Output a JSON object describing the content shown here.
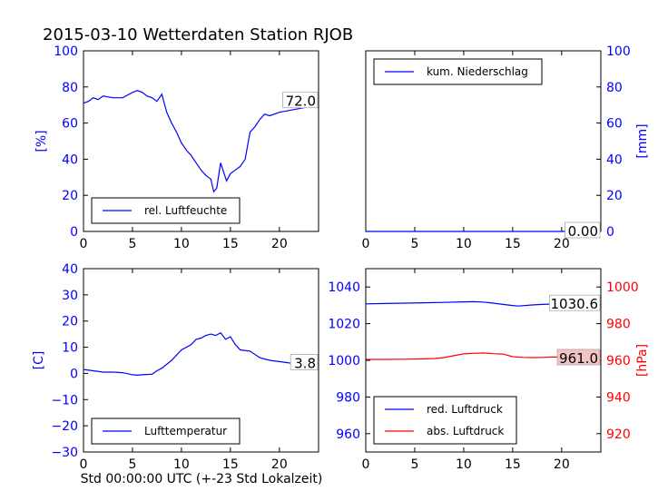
{
  "figure": {
    "title": "2015-03-10 Wetterdaten Station RJOB",
    "xlabel": "Std 00:00:00 UTC (+-23 Std Lokalzeit)"
  },
  "colors": {
    "blue": "#0000ff",
    "red": "#ff0000",
    "black": "#000000",
    "ann_bg_red": "#f4c2c2"
  },
  "chart_data": [
    {
      "type": "line",
      "title": "",
      "ylabel": "[%]",
      "xlim": [
        0,
        24
      ],
      "ylim": [
        0,
        100
      ],
      "xticks": [
        "0",
        "5",
        "10",
        "15",
        "20"
      ],
      "yticks": [
        "0",
        "20",
        "40",
        "60",
        "80",
        "100"
      ],
      "legend": {
        "position": "bottom-left",
        "entries": [
          "rel. Luftfeuchte"
        ]
      },
      "annotation": "72.0",
      "series": [
        {
          "name": "rel. Luftfeuchte",
          "color": "#0000ff",
          "x": [
            0,
            0.5,
            1,
            1.5,
            2,
            3,
            4,
            5,
            5.5,
            6,
            6.5,
            7,
            7.5,
            8,
            8.5,
            9,
            9.5,
            10,
            10.5,
            11,
            11.5,
            12,
            12.5,
            13,
            13.3,
            13.6,
            14,
            14.3,
            14.6,
            15,
            15.5,
            16,
            16.5,
            17,
            17.5,
            18,
            18.5,
            19,
            20,
            21,
            22,
            23,
            23.5,
            24
          ],
          "y": [
            71,
            72,
            74,
            73,
            75,
            74,
            74,
            77,
            78,
            77,
            75,
            74,
            72,
            76,
            66,
            60,
            55,
            49,
            45,
            42,
            38,
            34,
            31,
            29,
            22,
            24,
            38,
            33,
            28,
            32,
            34,
            36,
            40,
            55,
            58,
            62,
            65,
            64,
            66,
            67,
            68,
            69,
            70,
            72
          ]
        }
      ]
    },
    {
      "type": "line",
      "title": "",
      "ylabel": "[mm]",
      "xlim": [
        0,
        24
      ],
      "ylim": [
        0,
        100
      ],
      "xticks": [
        "0",
        "5",
        "10",
        "15",
        "20"
      ],
      "yticks": [
        "0",
        "20",
        "40",
        "60",
        "80",
        "100"
      ],
      "legend": {
        "position": "top-left",
        "entries": [
          "kum. Niederschlag"
        ]
      },
      "annotation": "0.00",
      "series": [
        {
          "name": "kum. Niederschlag",
          "color": "#0000ff",
          "x": [
            0,
            24
          ],
          "y": [
            0,
            0
          ]
        }
      ]
    },
    {
      "type": "line",
      "title": "",
      "ylabel": "[C]",
      "xlim": [
        0,
        24
      ],
      "ylim": [
        -30,
        40
      ],
      "xticks": [
        "0",
        "5",
        "10",
        "15",
        "20"
      ],
      "yticks": [
        "−30",
        "−20",
        "−10",
        "0",
        "10",
        "20",
        "30",
        "40"
      ],
      "legend": {
        "position": "bottom-left",
        "entries": [
          "Lufttemperatur"
        ]
      },
      "annotation": "3.8",
      "series": [
        {
          "name": "Lufttemperatur",
          "color": "#0000ff",
          "x": [
            0,
            1,
            2,
            3,
            4,
            5,
            5.5,
            6,
            7,
            7.5,
            8,
            9,
            10,
            10.5,
            11,
            11.5,
            12,
            12.5,
            13,
            13.5,
            14,
            14.5,
            15,
            15.5,
            16,
            17,
            18,
            19,
            20,
            21,
            22,
            23,
            24
          ],
          "y": [
            1.5,
            1,
            0.5,
            0.5,
            0.3,
            -0.5,
            -0.7,
            -0.5,
            -0.3,
            1,
            2,
            5,
            9,
            10,
            11,
            13,
            13.5,
            14.5,
            15,
            14.5,
            15.5,
            13,
            14,
            11,
            9,
            8.5,
            6,
            5,
            4.5,
            4,
            3.8,
            3.5,
            3.8
          ]
        }
      ]
    },
    {
      "type": "line",
      "title": "",
      "ylabel": "[hPa]",
      "xlim": [
        0,
        24
      ],
      "ylim": [
        950,
        1050
      ],
      "y2lim": [
        910,
        1010
      ],
      "xticks": [
        "0",
        "5",
        "10",
        "15",
        "20"
      ],
      "yticks": [
        "960",
        "980",
        "1000",
        "1020",
        "1040"
      ],
      "y2ticks": [
        "920",
        "940",
        "960",
        "980",
        "1000"
      ],
      "legend": {
        "position": "bottom-left",
        "entries": [
          "red. Luftdruck",
          "abs. Luftdruck"
        ]
      },
      "annotations": [
        "1030.6",
        "961.0"
      ],
      "series": [
        {
          "name": "red. Luftdruck",
          "color": "#0000ff",
          "axis": "left",
          "x": [
            0,
            2,
            4,
            6,
            8,
            10,
            11,
            12,
            13,
            14,
            15,
            15.5,
            16,
            17,
            18,
            19,
            20,
            21,
            22,
            23,
            24
          ],
          "y": [
            1030.8,
            1031,
            1031.2,
            1031.4,
            1031.6,
            1031.9,
            1032,
            1031.8,
            1031.2,
            1030.5,
            1029.9,
            1029.6,
            1029.8,
            1030.2,
            1030.5,
            1030.7,
            1030.9,
            1031.2,
            1031.3,
            1031.1,
            1030.6
          ]
        },
        {
          "name": "abs. Luftdruck",
          "color": "#ff0000",
          "axis": "right",
          "x": [
            0,
            2,
            4,
            6,
            7,
            8,
            9,
            10,
            11,
            12,
            13,
            14,
            15,
            16,
            17,
            18,
            19,
            20,
            21,
            22,
            23,
            24
          ],
          "y": [
            960.5,
            960.5,
            960.6,
            960.8,
            961,
            961.5,
            962.5,
            963.5,
            963.8,
            964,
            963.6,
            963.4,
            962,
            961.6,
            961.5,
            961.6,
            961.8,
            961.8,
            962,
            962,
            961.5,
            961
          ]
        }
      ]
    }
  ]
}
